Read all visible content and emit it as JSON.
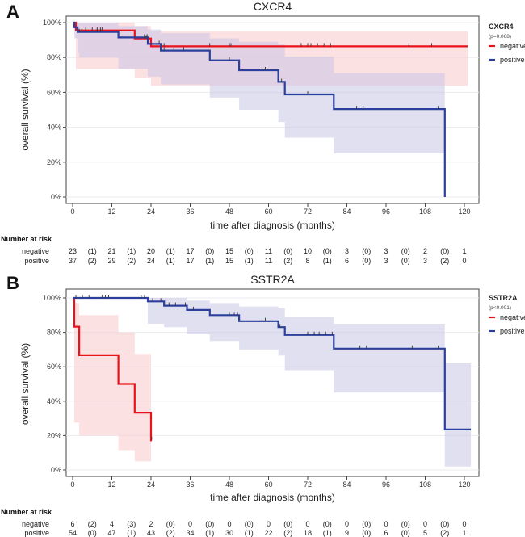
{
  "chart_data": [
    {
      "type": "line",
      "panel": "A",
      "title": "CXCR4",
      "xlabel": "time after diagnosis (months)",
      "ylabel": "overall survival (%)",
      "xlim": [
        0,
        120
      ],
      "ylim": [
        0,
        100
      ],
      "xticks": [
        "0",
        "12",
        "24",
        "36",
        "48",
        "60",
        "72",
        "84",
        "96",
        "108",
        "120"
      ],
      "yticks": [
        "0%",
        "20%",
        "40%",
        "60%",
        "80%",
        "100%"
      ],
      "grid": true,
      "legend": {
        "title": "CXCR4",
        "pvalue": "(p=0.068)",
        "placement": "right"
      },
      "series": [
        {
          "name": "negative",
          "color": "#e8131b",
          "band_color": "#f9c9cc",
          "steps": [
            [
              0,
              100
            ],
            [
              1,
              100
            ],
            [
              1,
              95.5
            ],
            [
              19,
              95.5
            ],
            [
              19,
              90.9
            ],
            [
              24,
              90.9
            ],
            [
              24,
              86.4
            ],
            [
              121,
              86.4
            ]
          ],
          "ci": [
            [
              0,
              100,
              100
            ],
            [
              1,
              100,
              100
            ],
            [
              1,
              100,
              73.4
            ],
            [
              19,
              100,
              73.4
            ],
            [
              19,
              98,
              68.5
            ],
            [
              24,
              98,
              68.5
            ],
            [
              24,
              95,
              63.8
            ],
            [
              121,
              95,
              63.8
            ]
          ],
          "censor": [
            [
              4,
              95.5
            ],
            [
              6,
              95.5
            ],
            [
              7.5,
              95.5
            ],
            [
              8.5,
              95.5
            ],
            [
              9,
              95.5
            ],
            [
              22,
              90.9
            ],
            [
              22.5,
              90.9
            ],
            [
              28,
              86.4
            ],
            [
              42,
              86.4
            ],
            [
              48,
              86.4
            ],
            [
              48.5,
              86.4
            ],
            [
              70,
              86.4
            ],
            [
              72,
              86.4
            ],
            [
              73,
              86.4
            ],
            [
              75,
              86.4
            ],
            [
              77,
              86.4
            ],
            [
              79,
              86.4
            ],
            [
              103,
              86.4
            ],
            [
              110,
              86.4
            ]
          ]
        },
        {
          "name": "positive",
          "color": "#2b3f9c",
          "band_color": "#c9c7e6",
          "steps": [
            [
              0,
              100
            ],
            [
              0.5,
              100
            ],
            [
              0.5,
              97.3
            ],
            [
              1.5,
              97.3
            ],
            [
              1.5,
              94.6
            ],
            [
              14,
              94.6
            ],
            [
              14,
              91.5
            ],
            [
              23,
              91.5
            ],
            [
              23,
              87.8
            ],
            [
              27,
              87.8
            ],
            [
              27,
              84
            ],
            [
              42,
              84
            ],
            [
              42,
              78.4
            ],
            [
              51,
              78.4
            ],
            [
              51,
              72.7
            ],
            [
              63,
              72.7
            ],
            [
              63,
              66
            ],
            [
              65,
              66
            ],
            [
              65,
              58.8
            ],
            [
              80,
              58.8
            ],
            [
              80,
              50.4
            ],
            [
              114,
              50.4
            ],
            [
              114,
              0
            ]
          ],
          "ci": [
            [
              0,
              100,
              100
            ],
            [
              0.5,
              100,
              91
            ],
            [
              1.5,
              100,
              82.5
            ],
            [
              1.5,
              100,
              82.5
            ],
            [
              2,
              100,
              82.5
            ],
            [
              2,
              100,
              80
            ],
            [
              14,
              100,
              80
            ],
            [
              14,
              98,
              73.5
            ],
            [
              23,
              98,
              73.5
            ],
            [
              23,
              96,
              69
            ],
            [
              27,
              96,
              69
            ],
            [
              27,
              94,
              64.5
            ],
            [
              42,
              94,
              64.5
            ],
            [
              42,
              91,
              57
            ],
            [
              51,
              91,
              57
            ],
            [
              51,
              89,
              50
            ],
            [
              63,
              89,
              50
            ],
            [
              63,
              87.5,
              43
            ],
            [
              65,
              87.5,
              43
            ],
            [
              65,
              80.5,
              34
            ],
            [
              80,
              80.5,
              34
            ],
            [
              80,
              71,
              25
            ],
            [
              114,
              71,
              25
            ],
            [
              114,
              71,
              25
            ]
          ],
          "censor": [
            [
              2,
              94.6
            ],
            [
              2.8,
              94.6
            ],
            [
              7.5,
              94.6
            ],
            [
              8.5,
              94.6
            ],
            [
              22,
              91.5
            ],
            [
              22.8,
              91.5
            ],
            [
              26.5,
              87.8
            ],
            [
              28,
              84
            ],
            [
              31,
              84
            ],
            [
              34,
              84
            ],
            [
              48,
              78.4
            ],
            [
              58,
              72.7
            ],
            [
              59,
              72.7
            ],
            [
              64,
              66
            ],
            [
              72,
              58.8
            ],
            [
              87,
              50.4
            ],
            [
              89,
              50.4
            ],
            [
              112,
              50.4
            ]
          ]
        }
      ],
      "risk_table": {
        "header": "Number at risk",
        "rows": [
          {
            "label": "negative",
            "values": [
              "23",
              "(1)",
              "21",
              "(1)",
              "20",
              "(1)",
              "17",
              "(0)",
              "15",
              "(0)",
              "11",
              "(0)",
              "10",
              "(0)",
              "3",
              "(0)",
              "3",
              "(0)",
              "2",
              "(0)",
              "1"
            ]
          },
          {
            "label": "positive",
            "values": [
              "37",
              "(2)",
              "29",
              "(2)",
              "24",
              "(1)",
              "17",
              "(1)",
              "15",
              "(1)",
              "11",
              "(2)",
              "8",
              "(1)",
              "6",
              "(0)",
              "3",
              "(0)",
              "3",
              "(2)",
              "0"
            ]
          }
        ]
      }
    },
    {
      "type": "line",
      "panel": "B",
      "title": "SSTR2A",
      "xlabel": "time after diagnosis (months)",
      "ylabel": "overall survival (%)",
      "xlim": [
        0,
        120
      ],
      "ylim": [
        0,
        100
      ],
      "xticks": [
        "0",
        "12",
        "24",
        "36",
        "48",
        "60",
        "72",
        "84",
        "96",
        "108",
        "120"
      ],
      "yticks": [
        "0%",
        "20%",
        "40%",
        "60%",
        "80%",
        "100%"
      ],
      "grid": true,
      "legend": {
        "title": "SSTR2A",
        "pvalue": "(p<0.001)",
        "placement": "right"
      },
      "series": [
        {
          "name": "negative",
          "color": "#e8131b",
          "band_color": "#f9c9cc",
          "steps": [
            [
              0.5,
              100
            ],
            [
              0.5,
              83.3
            ],
            [
              2,
              83.3
            ],
            [
              2,
              66.7
            ],
            [
              14,
              66.7
            ],
            [
              14,
              50
            ],
            [
              19,
              50
            ],
            [
              19,
              33.3
            ],
            [
              24,
              33.3
            ],
            [
              24,
              16.7
            ]
          ],
          "ci": [
            [
              0.5,
              100,
              100
            ],
            [
              0.5,
              97,
              27.5
            ],
            [
              2,
              97,
              27.5
            ],
            [
              2,
              90,
              20
            ],
            [
              14,
              90,
              20
            ],
            [
              14,
              80,
              11.5
            ],
            [
              19,
              80,
              11.5
            ],
            [
              19,
              67.5,
              5
            ],
            [
              24,
              67.5,
              5
            ],
            [
              24,
              51,
              5
            ]
          ],
          "censor": [
            [
              24.2,
              17.5
            ]
          ]
        },
        {
          "name": "positive",
          "color": "#2b3f9c",
          "band_color": "#c9c7e6",
          "steps": [
            [
              0,
              100
            ],
            [
              23,
              100
            ],
            [
              23,
              98
            ],
            [
              28,
              98
            ],
            [
              28,
              95.5
            ],
            [
              35,
              95.5
            ],
            [
              35,
              93
            ],
            [
              42,
              93
            ],
            [
              42,
              90
            ],
            [
              51,
              90
            ],
            [
              51,
              86.5
            ],
            [
              63,
              86.5
            ],
            [
              63,
              83
            ],
            [
              65,
              83
            ],
            [
              65,
              78.5
            ],
            [
              80,
              78.5
            ],
            [
              80,
              70.5
            ],
            [
              114,
              70.5
            ],
            [
              114,
              23.5
            ],
            [
              122,
              23.5
            ]
          ],
          "ci": [
            [
              23,
              100,
              85
            ],
            [
              28,
              100,
              83
            ],
            [
              35,
              98.5,
              79
            ],
            [
              42,
              97,
              75
            ],
            [
              51,
              95,
              70
            ],
            [
              63,
              94,
              66.5
            ],
            [
              65,
              89,
              58
            ],
            [
              80,
              85,
              45
            ],
            [
              114,
              62,
              2
            ]
          ],
          "censor": [
            [
              1,
              100
            ],
            [
              3,
              100
            ],
            [
              5,
              100
            ],
            [
              9,
              100
            ],
            [
              10,
              100
            ],
            [
              11,
              100
            ],
            [
              21,
              100
            ],
            [
              22,
              100
            ],
            [
              24.5,
              98
            ],
            [
              27,
              98
            ],
            [
              29.5,
              95.5
            ],
            [
              31.5,
              95.5
            ],
            [
              34.5,
              95.5
            ],
            [
              37,
              93
            ],
            [
              48,
              90
            ],
            [
              49.5,
              90
            ],
            [
              50.5,
              90
            ],
            [
              58,
              86.5
            ],
            [
              59,
              86.5
            ],
            [
              63.5,
              83
            ],
            [
              72,
              78.5
            ],
            [
              74,
              78.5
            ],
            [
              75.5,
              78.5
            ],
            [
              77.5,
              78.5
            ],
            [
              79.5,
              78.5
            ],
            [
              88,
              70.5
            ],
            [
              90,
              70.5
            ],
            [
              104,
              70.5
            ],
            [
              111,
              70.5
            ],
            [
              112,
              70.5
            ]
          ]
        }
      ],
      "risk_table": {
        "header": "Number at risk",
        "rows": [
          {
            "label": "negative",
            "values": [
              "6",
              "(2)",
              "4",
              "(3)",
              "2",
              "(0)",
              "0",
              "(0)",
              "0",
              "(0)",
              "0",
              "(0)",
              "0",
              "(0)",
              "0",
              "(0)",
              "0",
              "(0)",
              "0",
              "(0)",
              "0"
            ]
          },
          {
            "label": "positive",
            "values": [
              "54",
              "(0)",
              "47",
              "(1)",
              "43",
              "(2)",
              "34",
              "(1)",
              "30",
              "(1)",
              "22",
              "(2)",
              "18",
              "(1)",
              "9",
              "(0)",
              "6",
              "(0)",
              "5",
              "(2)",
              "1"
            ]
          }
        ]
      }
    }
  ]
}
